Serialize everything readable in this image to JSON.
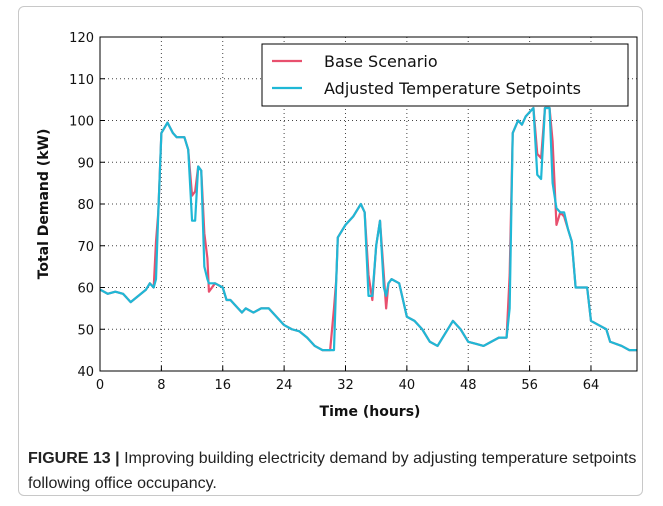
{
  "chart_data": {
    "type": "line",
    "xlabel": "Time (hours)",
    "ylabel": "Total Demand (kW)",
    "xlim": [
      0,
      70
    ],
    "xticks": [
      0,
      8,
      16,
      24,
      32,
      40,
      48,
      56,
      64
    ],
    "ylim": [
      40,
      120
    ],
    "yticks": [
      40,
      50,
      60,
      70,
      80,
      90,
      100,
      110,
      120
    ],
    "grid": true,
    "legend": "upper right",
    "x": [
      0,
      1,
      2,
      3,
      4,
      5,
      6,
      6.5,
      7,
      7.3,
      7.6,
      8,
      8.8,
      9.5,
      10,
      11,
      11.5,
      12,
      12.4,
      12.8,
      13.2,
      13.6,
      14,
      14.2,
      15,
      16,
      16.5,
      17,
      18,
      18.5,
      19,
      20,
      21,
      22,
      23,
      24,
      25,
      26,
      27,
      28,
      29,
      30,
      30.5,
      30.8,
      31,
      32,
      33,
      34,
      34.5,
      35,
      35.5,
      36,
      36.5,
      37,
      37.3,
      37.6,
      38,
      39,
      39.5,
      40,
      41,
      42,
      43,
      44,
      45,
      46,
      47,
      48,
      49,
      50,
      51,
      52,
      53,
      53.4,
      53.8,
      54.5,
      55,
      55.5,
      56,
      56.5,
      57,
      57.5,
      58,
      58.6,
      59,
      59.5,
      60,
      60.5,
      61,
      61.5,
      62,
      63,
      63.5,
      64,
      65,
      66,
      66.5,
      68,
      69,
      70
    ],
    "series": [
      {
        "name": "Base Scenario",
        "color": "#e8506e",
        "values": [
          59.5,
          58.5,
          59,
          58.5,
          56.5,
          58,
          59.5,
          61,
          60,
          71,
          78,
          97,
          99.5,
          97,
          96,
          96,
          93,
          82,
          83,
          89,
          88,
          73,
          67,
          59,
          61,
          60,
          57,
          57,
          55,
          54,
          55,
          54,
          55,
          55,
          53,
          51,
          50,
          49.5,
          48,
          46,
          45,
          45,
          55,
          62,
          72,
          75,
          77,
          80,
          78,
          63,
          57,
          70,
          76,
          63,
          55,
          61,
          62,
          61,
          57,
          53,
          52,
          50,
          47,
          46,
          49,
          52,
          50,
          47,
          46.5,
          46,
          47,
          48,
          48,
          63,
          97,
          100,
          99,
          101,
          102,
          103,
          92,
          91,
          103,
          103,
          95,
          75,
          78,
          77,
          74,
          71,
          60,
          60,
          60,
          52,
          51,
          50,
          47,
          46,
          45,
          45
        ]
      },
      {
        "name": "Adjusted Temperature Setpoints",
        "color": "#1fb8d6",
        "values": [
          59.5,
          58.5,
          59,
          58.5,
          56.5,
          58,
          59.5,
          61,
          60,
          62,
          78,
          97,
          99.5,
          97,
          96,
          96,
          93,
          76,
          76,
          89,
          88,
          65,
          62,
          61,
          61,
          60,
          57,
          57,
          55,
          54,
          55,
          54,
          55,
          55,
          53,
          51,
          50,
          49.5,
          48,
          46,
          45,
          45,
          45,
          62,
          72,
          75,
          77,
          80,
          78,
          58,
          58,
          70,
          76,
          60,
          58,
          61,
          62,
          61,
          57,
          53,
          52,
          50,
          47,
          46,
          49,
          52,
          50,
          47,
          46.5,
          46,
          47,
          48,
          48,
          55,
          97,
          100,
          99,
          101,
          102,
          103,
          87,
          86,
          103,
          103,
          85,
          79,
          78,
          78,
          74,
          71,
          60,
          60,
          60,
          52,
          51,
          50,
          47,
          46,
          45,
          45
        ]
      }
    ]
  },
  "caption": {
    "label": "FIGURE 13 |",
    "text": "Improving building electricity demand by adjusting temperature setpoints following office occupancy."
  }
}
